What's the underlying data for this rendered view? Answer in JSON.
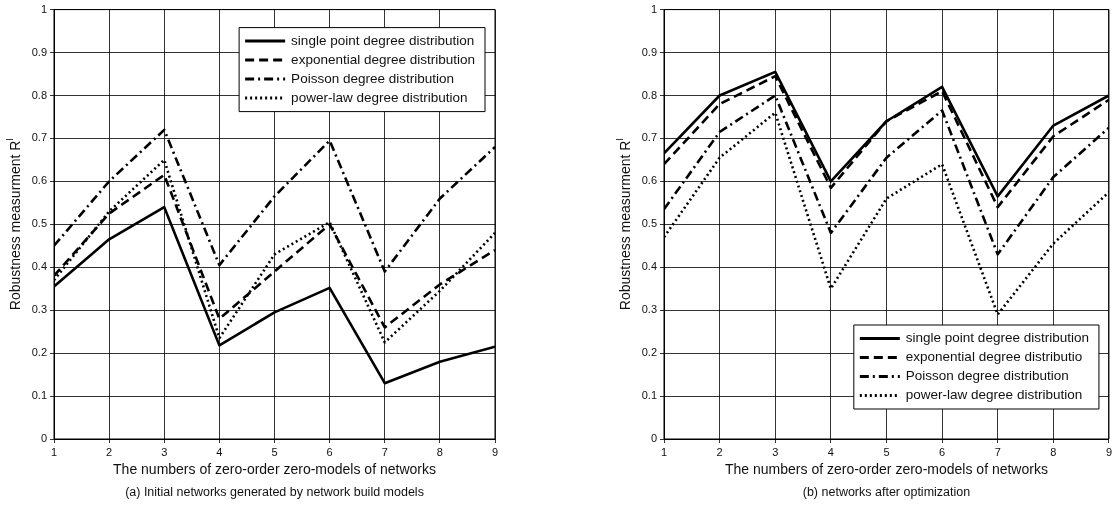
{
  "chart_data": [
    {
      "type": "line",
      "xlabel": "The numbers of zero-order zero-models of networks",
      "ylabel": "Robustness measurment R$^{l}$",
      "x": [
        1,
        2,
        3,
        4,
        5,
        6,
        7,
        8,
        9
      ],
      "xlim": [
        1,
        9
      ],
      "xticks": [
        1,
        2,
        3,
        4,
        5,
        6,
        7,
        8,
        9
      ],
      "ylim": [
        0,
        1
      ],
      "yticks": [
        0,
        0.1,
        0.2,
        0.3,
        0.4,
        0.5,
        0.6,
        0.7,
        0.8,
        0.9,
        1
      ],
      "grid": true,
      "legend": "top right",
      "annotations": [
        "(a) Initial networks generated by network build models"
      ],
      "series": [
        {
          "name": "single point degree distribution",
          "color": "#000000",
          "line_style": "solid",
          "values": [
            0.355,
            0.465,
            0.54,
            0.218,
            0.295,
            0.352,
            0.13,
            0.18,
            0.215
          ]
        },
        {
          "name": "exponential degree distribution",
          "color": "#000000",
          "line_style": "dashed",
          "values": [
            0.38,
            0.525,
            0.615,
            0.28,
            0.39,
            0.5,
            0.26,
            0.36,
            0.44
          ]
        },
        {
          "name": "Poisson degree distribution",
          "color": "#000000",
          "line_style": "dashdot",
          "values": [
            0.45,
            0.6,
            0.72,
            0.405,
            0.565,
            0.695,
            0.39,
            0.56,
            0.68
          ]
        },
        {
          "name": "power-law degree distribution",
          "color": "#000000",
          "line_style": "dotted",
          "values": [
            0.37,
            0.53,
            0.65,
            0.235,
            0.43,
            0.505,
            0.225,
            0.345,
            0.48
          ]
        }
      ]
    },
    {
      "type": "line",
      "xlabel": "The numbers of zero-order zero-models of networks",
      "ylabel": "Robustness measurment R$^{l}$",
      "x": [
        1,
        2,
        3,
        4,
        5,
        6,
        7,
        8,
        9
      ],
      "xlim": [
        1,
        9
      ],
      "xticks": [
        1,
        2,
        3,
        4,
        5,
        6,
        7,
        8,
        9
      ],
      "ylim": [
        0,
        1
      ],
      "yticks": [
        0,
        0.1,
        0.2,
        0.3,
        0.4,
        0.5,
        0.6,
        0.7,
        0.8,
        0.9,
        1
      ],
      "grid": true,
      "legend": "bottom right",
      "annotations": [
        "(b) networks after optimization"
      ],
      "series": [
        {
          "name": "single point degree distribution",
          "color": "#000000",
          "line_style": "solid",
          "values": [
            0.665,
            0.8,
            0.855,
            0.6,
            0.74,
            0.82,
            0.565,
            0.73,
            0.8
          ]
        },
        {
          "name": "exponential degree distributio",
          "color": "#000000",
          "line_style": "dashed",
          "values": [
            0.64,
            0.78,
            0.845,
            0.585,
            0.74,
            0.81,
            0.54,
            0.705,
            0.79
          ]
        },
        {
          "name": "Poisson degree distribution",
          "color": "#000000",
          "line_style": "dashdot",
          "values": [
            0.535,
            0.715,
            0.8,
            0.48,
            0.655,
            0.765,
            0.43,
            0.61,
            0.725
          ]
        },
        {
          "name": "power-law degree distribution",
          "color": "#000000",
          "line_style": "dotted",
          "values": [
            0.47,
            0.655,
            0.76,
            0.35,
            0.56,
            0.64,
            0.29,
            0.455,
            0.575
          ]
        }
      ]
    }
  ]
}
